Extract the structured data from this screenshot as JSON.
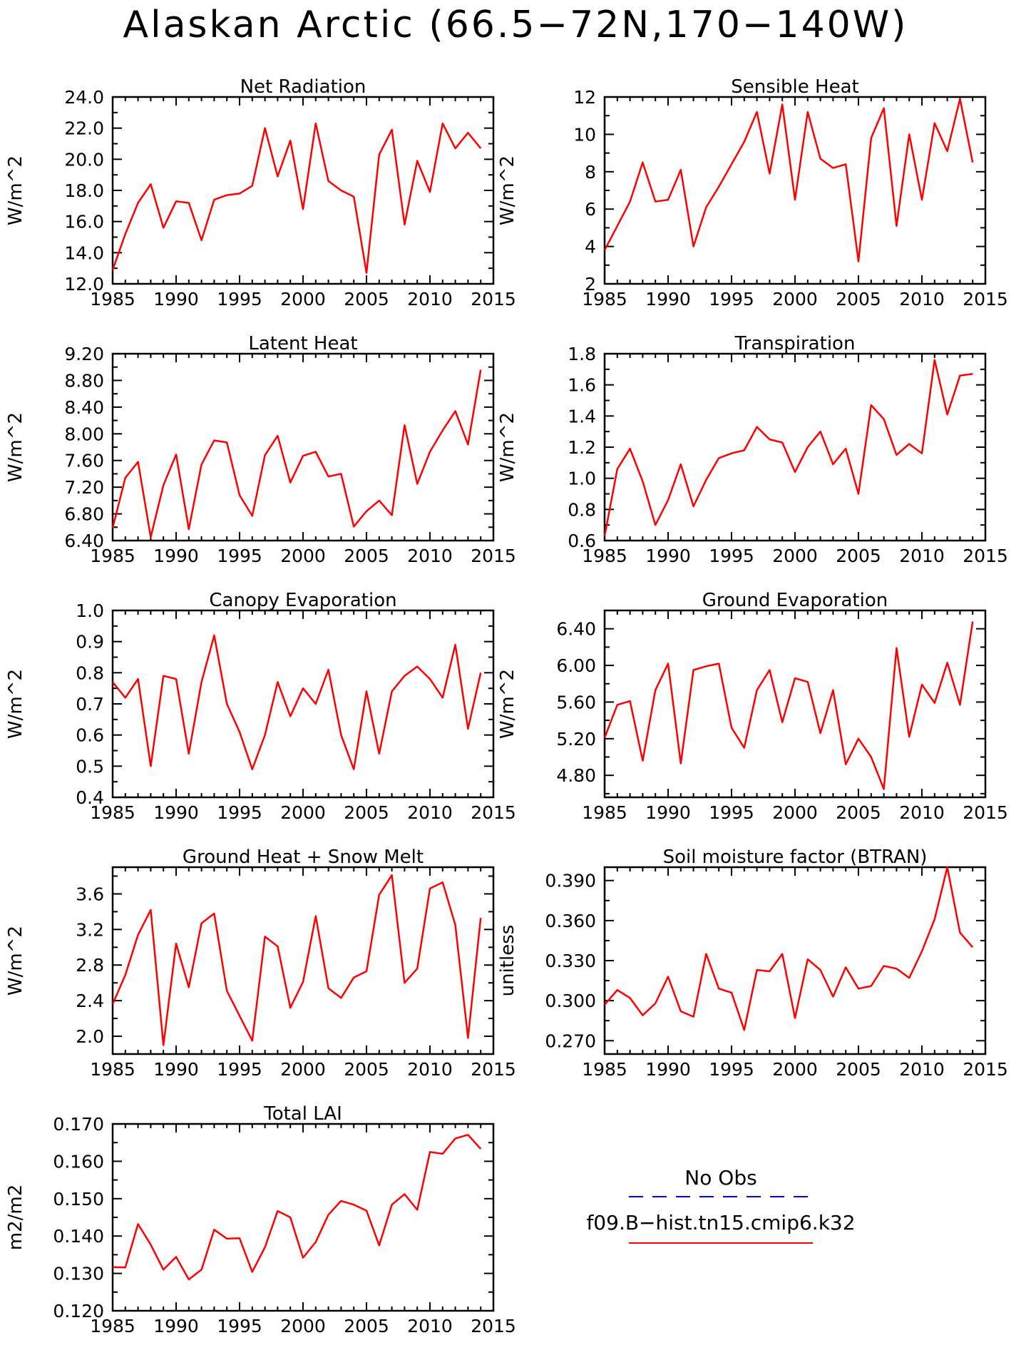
{
  "figure_title": "Alaskan Arctic (66.5−72N,170−140W)",
  "legend": {
    "entries": [
      {
        "label": "No Obs",
        "color": "#0000ff",
        "style": "dashed"
      },
      {
        "label": "f09.B−hist.tn15.cmip6.k32",
        "color": "#ff0000",
        "style": "solid"
      }
    ]
  },
  "chart_data": [
    {
      "type": "line",
      "title": "Net Radiation",
      "xlabel": "",
      "ylabel": "W/m^2",
      "xlim": [
        1985,
        2015
      ],
      "ylim": [
        12.0,
        24.0
      ],
      "xticks": [
        1985,
        1990,
        1995,
        2000,
        2005,
        2010,
        2015
      ],
      "yticks": [
        "12.0",
        "14.0",
        "16.0",
        "18.0",
        "20.0",
        "22.0",
        "24.0"
      ],
      "yminor": [
        13,
        15,
        17,
        19,
        21,
        23
      ],
      "x": [
        1985,
        1986,
        1987,
        1988,
        1989,
        1990,
        1991,
        1992,
        1993,
        1994,
        1995,
        1996,
        1997,
        1998,
        1999,
        2000,
        2001,
        2002,
        2003,
        2004,
        2005,
        2006,
        2007,
        2008,
        2009,
        2010,
        2011,
        2012,
        2013,
        2014
      ],
      "series": [
        {
          "color": "#ff0000",
          "values": [
            12.9,
            15.2,
            17.2,
            18.4,
            15.6,
            17.3,
            17.2,
            14.8,
            17.4,
            17.7,
            17.8,
            18.3,
            22.0,
            18.9,
            21.2,
            16.8,
            22.3,
            18.6,
            18.0,
            17.6,
            12.7,
            20.3,
            21.9,
            15.8,
            19.9,
            17.9,
            22.3,
            20.7,
            21.7,
            20.7
          ]
        }
      ]
    },
    {
      "type": "line",
      "title": "Sensible Heat",
      "xlabel": "",
      "ylabel": "W/m^2",
      "xlim": [
        1985,
        2015
      ],
      "ylim": [
        2,
        12
      ],
      "xticks": [
        1985,
        1990,
        1995,
        2000,
        2005,
        2010,
        2015
      ],
      "yticks": [
        "2",
        "4",
        "6",
        "8",
        "10",
        "12"
      ],
      "yminor": [
        3,
        5,
        7,
        9,
        11
      ],
      "x": [
        1985,
        1986,
        1987,
        1988,
        1989,
        1990,
        1991,
        1992,
        1993,
        1994,
        1995,
        1996,
        1997,
        1998,
        1999,
        2000,
        2001,
        2002,
        2003,
        2004,
        2005,
        2006,
        2007,
        2008,
        2009,
        2010,
        2011,
        2012,
        2013,
        2014
      ],
      "series": [
        {
          "color": "#ff0000",
          "values": [
            3.8,
            5.1,
            6.4,
            8.5,
            6.4,
            6.5,
            8.1,
            4.0,
            6.1,
            7.2,
            8.4,
            9.6,
            11.2,
            7.9,
            11.6,
            6.5,
            11.2,
            8.7,
            8.2,
            8.4,
            3.2,
            9.8,
            11.4,
            5.1,
            10.0,
            6.5,
            10.6,
            9.1,
            11.9,
            8.5
          ]
        }
      ]
    },
    {
      "type": "line",
      "title": "Latent Heat",
      "xlabel": "",
      "ylabel": "W/m^2",
      "xlim": [
        1985,
        2015
      ],
      "ylim": [
        6.4,
        9.2
      ],
      "xticks": [
        1985,
        1990,
        1995,
        2000,
        2005,
        2010,
        2015
      ],
      "yticks": [
        "6.40",
        "6.80",
        "7.20",
        "7.60",
        "8.00",
        "8.40",
        "8.80",
        "9.20"
      ],
      "yminor": [
        6.6,
        7.0,
        7.4,
        7.8,
        8.2,
        8.6,
        9.0
      ],
      "x": [
        1985,
        1986,
        1987,
        1988,
        1989,
        1990,
        1991,
        1992,
        1993,
        1994,
        1995,
        1996,
        1997,
        1998,
        1999,
        2000,
        2001,
        2002,
        2003,
        2004,
        2005,
        2006,
        2007,
        2008,
        2009,
        2010,
        2011,
        2012,
        2013,
        2014
      ],
      "series": [
        {
          "color": "#ff0000",
          "values": [
            6.59,
            7.34,
            7.58,
            6.45,
            7.23,
            7.69,
            6.57,
            7.54,
            7.9,
            7.87,
            7.08,
            6.77,
            7.68,
            7.97,
            7.27,
            7.67,
            7.73,
            7.36,
            7.4,
            6.61,
            6.84,
            7.0,
            6.78,
            8.13,
            7.25,
            7.73,
            8.05,
            8.34,
            7.84,
            8.96
          ]
        }
      ]
    },
    {
      "type": "line",
      "title": "Transpiration",
      "xlabel": "",
      "ylabel": "W/m^2",
      "xlim": [
        1985,
        2015
      ],
      "ylim": [
        0.6,
        1.8
      ],
      "xticks": [
        1985,
        1990,
        1995,
        2000,
        2005,
        2010,
        2015
      ],
      "yticks": [
        "0.6",
        "0.8",
        "1.0",
        "1.2",
        "1.4",
        "1.6",
        "1.8"
      ],
      "yminor": [
        0.7,
        0.9,
        1.1,
        1.3,
        1.5,
        1.7
      ],
      "x": [
        1985,
        1986,
        1987,
        1988,
        1989,
        1990,
        1991,
        1992,
        1993,
        1994,
        1995,
        1996,
        1997,
        1998,
        1999,
        2000,
        2001,
        2002,
        2003,
        2004,
        2005,
        2006,
        2007,
        2008,
        2009,
        2010,
        2011,
        2012,
        2013,
        2014
      ],
      "series": [
        {
          "color": "#ff0000",
          "values": [
            0.63,
            1.06,
            1.19,
            0.98,
            0.7,
            0.86,
            1.09,
            0.82,
            0.99,
            1.13,
            1.16,
            1.18,
            1.33,
            1.25,
            1.23,
            1.04,
            1.2,
            1.3,
            1.09,
            1.19,
            0.9,
            1.47,
            1.38,
            1.15,
            1.22,
            1.16,
            1.76,
            1.41,
            1.66,
            1.67
          ]
        }
      ]
    },
    {
      "type": "line",
      "title": "Canopy Evaporation",
      "xlabel": "",
      "ylabel": "W/m^2",
      "xlim": [
        1985,
        2015
      ],
      "ylim": [
        0.4,
        1.0
      ],
      "xticks": [
        1985,
        1990,
        1995,
        2000,
        2005,
        2010,
        2015
      ],
      "yticks": [
        "0.4",
        "0.5",
        "0.6",
        "0.7",
        "0.8",
        "0.9",
        "1.0"
      ],
      "yminor": [
        0.45,
        0.55,
        0.65,
        0.75,
        0.85,
        0.95
      ],
      "x": [
        1985,
        1986,
        1987,
        1988,
        1989,
        1990,
        1991,
        1992,
        1993,
        1994,
        1995,
        1996,
        1997,
        1998,
        1999,
        2000,
        2001,
        2002,
        2003,
        2004,
        2005,
        2006,
        2007,
        2008,
        2009,
        2010,
        2011,
        2012,
        2013,
        2014
      ],
      "series": [
        {
          "color": "#ff0000",
          "values": [
            0.77,
            0.72,
            0.78,
            0.5,
            0.79,
            0.78,
            0.54,
            0.77,
            0.92,
            0.7,
            0.61,
            0.49,
            0.6,
            0.77,
            0.66,
            0.75,
            0.7,
            0.81,
            0.6,
            0.49,
            0.74,
            0.54,
            0.74,
            0.79,
            0.82,
            0.78,
            0.72,
            0.89,
            0.62,
            0.8
          ]
        }
      ]
    },
    {
      "type": "line",
      "title": "Ground Evaporation",
      "xlabel": "",
      "ylabel": "W/m^2",
      "xlim": [
        1985,
        2015
      ],
      "ylim": [
        4.56,
        6.6
      ],
      "xticks": [
        1985,
        1990,
        1995,
        2000,
        2005,
        2010,
        2015
      ],
      "yticks": [
        "4.80",
        "5.20",
        "5.60",
        "6.00",
        "6.40"
      ],
      "yminor": [
        4.6,
        5.0,
        5.4,
        5.8,
        6.2,
        6.6
      ],
      "x": [
        1985,
        1986,
        1987,
        1988,
        1989,
        1990,
        1991,
        1992,
        1993,
        1994,
        1995,
        1996,
        1997,
        1998,
        1999,
        2000,
        2001,
        2002,
        2003,
        2004,
        2005,
        2006,
        2007,
        2008,
        2009,
        2010,
        2011,
        2012,
        2013,
        2014
      ],
      "series": [
        {
          "color": "#ff0000",
          "values": [
            5.21,
            5.57,
            5.61,
            4.96,
            5.73,
            6.02,
            4.93,
            5.95,
            5.99,
            6.02,
            5.32,
            5.1,
            5.73,
            5.95,
            5.38,
            5.86,
            5.82,
            5.26,
            5.73,
            4.92,
            5.2,
            5.0,
            4.65,
            6.19,
            5.22,
            5.79,
            5.59,
            6.03,
            5.57,
            6.48
          ]
        }
      ]
    },
    {
      "type": "line",
      "title": "Ground Heat + Snow Melt",
      "xlabel": "",
      "ylabel": "W/m^2",
      "xlim": [
        1985,
        2015
      ],
      "ylim": [
        1.8,
        3.9
      ],
      "xticks": [
        1985,
        1990,
        1995,
        2000,
        2005,
        2010,
        2015
      ],
      "yticks": [
        "2.0",
        "2.4",
        "2.8",
        "3.2",
        "3.6"
      ],
      "yminor": [
        1.8,
        2.2,
        2.6,
        3.0,
        3.4,
        3.8
      ],
      "x": [
        1985,
        1986,
        1987,
        1988,
        1989,
        1990,
        1991,
        1992,
        1993,
        1994,
        1995,
        1996,
        1997,
        1998,
        1999,
        2000,
        2001,
        2002,
        2003,
        2004,
        2005,
        2006,
        2007,
        2008,
        2009,
        2010,
        2011,
        2012,
        2013,
        2014
      ],
      "series": [
        {
          "color": "#ff0000",
          "values": [
            2.36,
            2.69,
            3.14,
            3.42,
            1.9,
            3.04,
            2.55,
            3.27,
            3.38,
            2.51,
            2.23,
            1.95,
            3.12,
            3.01,
            2.32,
            2.61,
            3.35,
            2.54,
            2.43,
            2.66,
            2.73,
            3.59,
            3.81,
            2.6,
            2.76,
            3.66,
            3.73,
            3.25,
            1.98,
            3.33
          ]
        }
      ]
    },
    {
      "type": "line",
      "title": "Soil moisture factor (BTRAN)",
      "xlabel": "",
      "ylabel": "unitless",
      "xlim": [
        1985,
        2015
      ],
      "ylim": [
        0.26,
        0.4
      ],
      "xticks": [
        1985,
        1990,
        1995,
        2000,
        2005,
        2010,
        2015
      ],
      "yticks": [
        "0.270",
        "0.300",
        "0.330",
        "0.360",
        "0.390"
      ],
      "yminor": [
        0.285,
        0.315,
        0.345,
        0.375
      ],
      "x": [
        1985,
        1986,
        1987,
        1988,
        1989,
        1990,
        1991,
        1992,
        1993,
        1994,
        1995,
        1996,
        1997,
        1998,
        1999,
        2000,
        2001,
        2002,
        2003,
        2004,
        2005,
        2006,
        2007,
        2008,
        2009,
        2010,
        2011,
        2012,
        2013,
        2014
      ],
      "series": [
        {
          "color": "#ff0000",
          "values": [
            0.297,
            0.308,
            0.302,
            0.289,
            0.298,
            0.318,
            0.292,
            0.288,
            0.335,
            0.309,
            0.306,
            0.278,
            0.323,
            0.322,
            0.335,
            0.287,
            0.331,
            0.323,
            0.303,
            0.325,
            0.309,
            0.311,
            0.326,
            0.324,
            0.317,
            0.337,
            0.361,
            0.4,
            0.351,
            0.34
          ]
        }
      ]
    },
    {
      "type": "line",
      "title": "Total LAI",
      "xlabel": "",
      "ylabel": "m2/m2",
      "xlim": [
        1985,
        2015
      ],
      "ylim": [
        0.12,
        0.17
      ],
      "xticks": [
        1985,
        1990,
        1995,
        2000,
        2005,
        2010,
        2015
      ],
      "yticks": [
        "0.120",
        "0.130",
        "0.140",
        "0.150",
        "0.160",
        "0.170"
      ],
      "yminor": [
        0.125,
        0.135,
        0.145,
        0.155,
        0.165
      ],
      "x": [
        1985,
        1986,
        1987,
        1988,
        1989,
        1990,
        1991,
        1992,
        1993,
        1994,
        1995,
        1996,
        1997,
        1998,
        1999,
        2000,
        2001,
        2002,
        2003,
        2004,
        2005,
        2006,
        2007,
        2008,
        2009,
        2010,
        2011,
        2012,
        2013,
        2014
      ],
      "series": [
        {
          "color": "#ff0000",
          "values": [
            0.1317,
            0.1316,
            0.1432,
            0.1377,
            0.131,
            0.1344,
            0.1284,
            0.131,
            0.1417,
            0.1393,
            0.1394,
            0.1304,
            0.137,
            0.1467,
            0.145,
            0.1342,
            0.1384,
            0.1457,
            0.1494,
            0.1484,
            0.1468,
            0.1375,
            0.1484,
            0.1512,
            0.147,
            0.1625,
            0.162,
            0.1661,
            0.1671,
            0.1633
          ]
        }
      ]
    }
  ]
}
